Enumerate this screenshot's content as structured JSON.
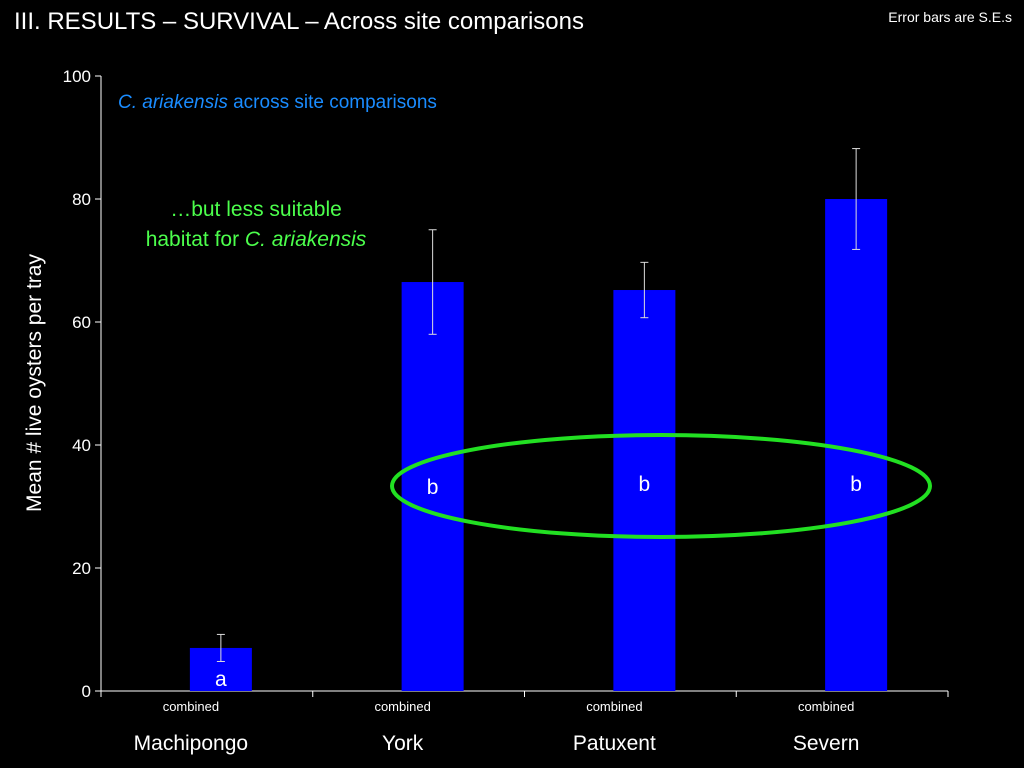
{
  "slide": {
    "title": "III.  RESULTS –  SURVIVAL – Across site comparisons",
    "note": "Error bars are S.E.s"
  },
  "colors": {
    "bar": "#0000ff",
    "highlight": "#22e022",
    "subtitle": "#1a8cff",
    "annotation": "#4cff4c"
  },
  "chart_data": {
    "type": "bar",
    "title": "",
    "subtitle": {
      "species": "C. ariakensis",
      "rest": " across site comparisons"
    },
    "ylabel": "Mean # live oysters per tray",
    "xlabel": "",
    "ylim": [
      0,
      100
    ],
    "yticks": [
      0,
      20,
      40,
      60,
      80,
      100
    ],
    "grid": false,
    "categories": [
      "Machipongo",
      "York",
      "Patuxent",
      "Severn"
    ],
    "sublabels": [
      "combined",
      "combined",
      "combined",
      "combined"
    ],
    "values": [
      7,
      66.5,
      65.2,
      80
    ],
    "se": [
      2.2,
      8.5,
      4.5,
      8.2
    ],
    "significance": [
      "a",
      "b",
      "b",
      "b"
    ],
    "annotation": {
      "line1": "…but less suitable",
      "line2_prefix": "habitat for ",
      "line2_species": "C. ariakensis"
    }
  }
}
